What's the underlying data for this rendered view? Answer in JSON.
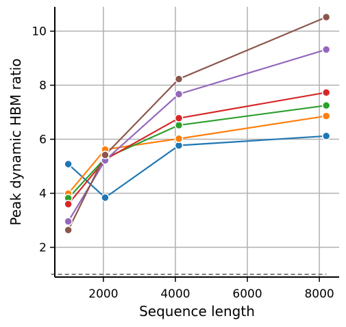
{
  "chart_data": {
    "type": "line",
    "xlabel": "Sequence length",
    "ylabel": "Peak dynamic HBM ratio",
    "xlim": [
      650,
      8550
    ],
    "ylim": [
      0.9,
      10.9
    ],
    "xticks": [
      2000,
      4000,
      6000,
      8000
    ],
    "yticks": [
      2,
      4,
      6,
      8,
      10
    ],
    "grid": true,
    "x": [
      1024,
      2048,
      4096,
      8192
    ],
    "series": [
      {
        "color": "#1f77b4",
        "values": [
          5.08,
          3.84,
          5.77,
          6.12
        ]
      },
      {
        "color": "#ff7f0e",
        "values": [
          3.99,
          5.62,
          6.02,
          6.86
        ]
      },
      {
        "color": "#2ca02c",
        "values": [
          3.82,
          5.3,
          6.52,
          7.25
        ]
      },
      {
        "color": "#d62728",
        "values": [
          3.6,
          5.25,
          6.78,
          7.73
        ]
      },
      {
        "color": "#9467bd",
        "values": [
          2.96,
          5.22,
          7.67,
          9.32
        ]
      },
      {
        "color": "#8c564b",
        "values": [
          2.64,
          5.42,
          8.23,
          10.52
        ]
      }
    ],
    "reference_line": {
      "y": 1.0,
      "color": "#808080",
      "style": "dashed",
      "x_range": [
        1024,
        8192
      ]
    }
  }
}
